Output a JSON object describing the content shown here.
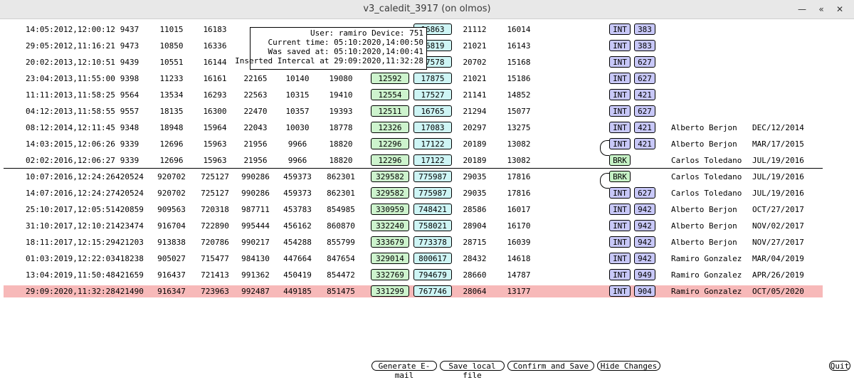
{
  "window": {
    "title": "v3_caledit_3917 (on olmos)"
  },
  "colors": {
    "highlight_row": "#f7b9b9",
    "tag_int": "#c8c8f8",
    "tag_brk": "#c6f2c6",
    "col_green": "#cdf3cd",
    "col_cyan": "#cef5f5"
  },
  "rows": [
    {
      "ts": "14:05:2012,12:00:12",
      "v": [
        "9437",
        "11015",
        "16183",
        "",
        "",
        ""
      ],
      "g": "",
      "c": "16863",
      "a": "21112",
      "b": "16014",
      "tag": "INT",
      "num": "383",
      "name": "",
      "date": ""
    },
    {
      "ts": "29:05:2012,11:16:21",
      "v": [
        "9473",
        "10850",
        "16336",
        "",
        "",
        ""
      ],
      "g": "",
      "c": "16819",
      "a": "21021",
      "b": "16143",
      "tag": "INT",
      "num": "383",
      "name": "",
      "date": ""
    },
    {
      "ts": "20:02:2013,12:10:51",
      "v": [
        "9439",
        "10551",
        "16144",
        "",
        "",
        ""
      ],
      "g": "",
      "c": "17578",
      "a": "20702",
      "b": "15168",
      "tag": "INT",
      "num": "627",
      "name": "",
      "date": ""
    },
    {
      "ts": "23:04:2013,11:55:00",
      "v": [
        "9398",
        "11233",
        "16161",
        "22165",
        "10140",
        "19080"
      ],
      "g": "12592",
      "c": "17875",
      "a": "21021",
      "b": "15186",
      "tag": "INT",
      "num": "627",
      "name": "",
      "date": ""
    },
    {
      "ts": "11:11:2013,11:58:25",
      "v": [
        "9564",
        "13534",
        "16293",
        "22563",
        "10315",
        "19410"
      ],
      "g": "12554",
      "c": "17527",
      "a": "21141",
      "b": "14852",
      "tag": "INT",
      "num": "421",
      "name": "",
      "date": ""
    },
    {
      "ts": "04:12:2013,11:58:55",
      "v": [
        "9557",
        "18135",
        "16300",
        "22470",
        "10357",
        "19393"
      ],
      "g": "12511",
      "c": "16765",
      "a": "21294",
      "b": "15077",
      "tag": "INT",
      "num": "627",
      "name": "",
      "date": ""
    },
    {
      "ts": "08:12:2014,12:11:45",
      "v": [
        "9348",
        "18948",
        "15964",
        "22043",
        "10030",
        "18778"
      ],
      "g": "12326",
      "c": "17083",
      "a": "20297",
      "b": "13275",
      "tag": "INT",
      "num": "421",
      "name": "Alberto Berjon",
      "date": "DEC/12/2014"
    },
    {
      "ts": "14:03:2015,12:06:26",
      "v": [
        "9339",
        "12696",
        "15963",
        "21956",
        "9966",
        "18820"
      ],
      "g": "12296",
      "c": "17122",
      "a": "20189",
      "b": "13082",
      "tag": "INT",
      "num": "421",
      "name": "Alberto Berjon",
      "date": "MAR/17/2015"
    },
    {
      "ts": "02:02:2016,12:06:27",
      "v": [
        "9339",
        "12696",
        "15963",
        "21956",
        "9966",
        "18820"
      ],
      "g": "12296",
      "c": "17122",
      "a": "20189",
      "b": "13082",
      "tag": "BRK",
      "num": "",
      "name": "Carlos Toledano",
      "date": "JUL/19/2016"
    },
    {
      "ts": "10:07:2016,12:24:26",
      "v": [
        "420524",
        "920702",
        "725127",
        "990286",
        "459373",
        "862301"
      ],
      "g": "329582",
      "c": "775987",
      "a": "29035",
      "b": "17816",
      "tag": "BRK",
      "num": "",
      "name": "Carlos Toledano",
      "date": "JUL/19/2016"
    },
    {
      "ts": "14:07:2016,12:24:27",
      "v": [
        "420524",
        "920702",
        "725127",
        "990286",
        "459373",
        "862301"
      ],
      "g": "329582",
      "c": "775987",
      "a": "29035",
      "b": "17816",
      "tag": "INT",
      "num": "627",
      "name": "Carlos Toledano",
      "date": "JUL/19/2016"
    },
    {
      "ts": "25:10:2017,12:05:51",
      "v": [
        "420859",
        "909563",
        "720318",
        "987711",
        "453783",
        "854985"
      ],
      "g": "330959",
      "c": "748421",
      "a": "28586",
      "b": "16017",
      "tag": "INT",
      "num": "942",
      "name": "Alberto Berjon",
      "date": "OCT/27/2017"
    },
    {
      "ts": "31:10:2017,12:10:21",
      "v": [
        "423474",
        "916704",
        "722890",
        "995444",
        "456162",
        "860870"
      ],
      "g": "332240",
      "c": "758021",
      "a": "28904",
      "b": "16170",
      "tag": "INT",
      "num": "942",
      "name": "Alberto Berjon",
      "date": "NOV/02/2017"
    },
    {
      "ts": "18:11:2017,12:15:29",
      "v": [
        "421203",
        "913838",
        "720786",
        "990217",
        "454288",
        "855799"
      ],
      "g": "333679",
      "c": "773378",
      "a": "28715",
      "b": "16039",
      "tag": "INT",
      "num": "942",
      "name": "Alberto Berjon",
      "date": "NOV/27/2017"
    },
    {
      "ts": "01:03:2019,12:22:03",
      "v": [
        "418238",
        "905027",
        "715477",
        "984130",
        "447664",
        "847654"
      ],
      "g": "329014",
      "c": "800617",
      "a": "28432",
      "b": "14618",
      "tag": "INT",
      "num": "942",
      "name": "Ramiro Gonzalez",
      "date": "MAR/04/2019"
    },
    {
      "ts": "13:04:2019,11:50:48",
      "v": [
        "421659",
        "916437",
        "721413",
        "991362",
        "450419",
        "854472"
      ],
      "g": "332769",
      "c": "794679",
      "a": "28660",
      "b": "14787",
      "tag": "INT",
      "num": "949",
      "name": "Ramiro Gonzalez",
      "date": "APR/26/2019"
    },
    {
      "ts": "29:09:2020,11:32:28",
      "v": [
        "421490",
        "916347",
        "723963",
        "992487",
        "449185",
        "851475"
      ],
      "g": "331299",
      "c": "767746",
      "a": "28064",
      "b": "13177",
      "tag": "INT",
      "num": "904",
      "name": "Ramiro Gonzalez",
      "date": "OCT/05/2020",
      "highlight": true
    }
  ],
  "tooltip": {
    "line1": "User: ramiro Device: 751",
    "line2": "Current time: 05:10:2020,14:00:50",
    "line3": "Was saved at: 05:10:2020,14:00:41",
    "line4": "Inserted Intercal at 29:09:2020,11:32:28"
  },
  "buttons": {
    "generate_email": "Generate E-mail",
    "save_local": "Save local file",
    "confirm_save": "Confirm and Save",
    "hide_changes": "Hide Changes",
    "quit": "Quit"
  }
}
